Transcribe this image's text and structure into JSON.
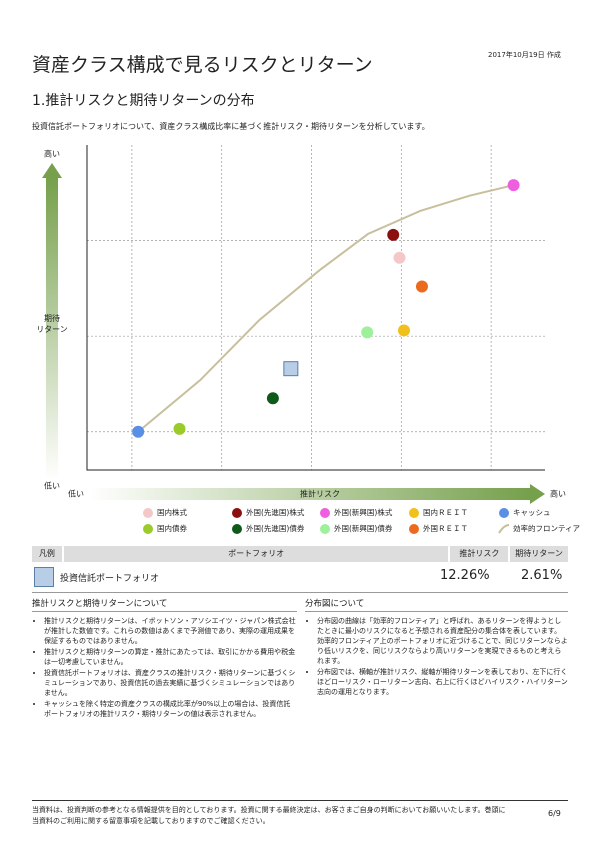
{
  "header": {
    "title": "資産クラス構成で見るリスクとリターン",
    "date": "2017年10月19日 作成",
    "section": "1.推計リスクと期待リターンの分布",
    "intro": "投資信託ポートフォリオについて、資産クラス構成比率に基づく推計リスク・期待リターンを分析しています。"
  },
  "chart_data": {
    "type": "scatter",
    "y_label": "期待\nリターン",
    "y_high": "高い",
    "y_low": "低い",
    "x_label": "推計リスク",
    "x_low": "低い",
    "x_high": "高い",
    "xlim": [
      -0.5,
      4.6
    ],
    "ylim": [
      -0.4,
      3
    ],
    "xticks": [
      0,
      1,
      2,
      3,
      4
    ],
    "yticks": [
      0,
      1,
      2
    ],
    "grid": true,
    "points": [
      {
        "name": "国内株式",
        "color": "#f4c7c9",
        "x": 2.98,
        "y": 1.82
      },
      {
        "name": "外国(先進国)株式",
        "color": "#8b0f0f",
        "x": 2.91,
        "y": 2.06
      },
      {
        "name": "外国(新興国)株式",
        "color": "#ee5fe0",
        "x": 4.25,
        "y": 2.58
      },
      {
        "name": "国内ＲＥＩＴ",
        "color": "#f2c01a",
        "x": 3.03,
        "y": 1.06
      },
      {
        "name": "キャッシュ",
        "color": "#5b8fe6",
        "x": 0.07,
        "y": 0
      },
      {
        "name": "国内債券",
        "color": "#9acb2a",
        "x": 0.53,
        "y": 0.03
      },
      {
        "name": "外国(先進国)債券",
        "color": "#0f5a1a",
        "x": 1.57,
        "y": 0.35
      },
      {
        "name": "外国(新興国)債券",
        "color": "#9ef09a",
        "x": 2.62,
        "y": 1.04
      },
      {
        "name": "外国ＲＥＩＴ",
        "color": "#ec6a1e",
        "x": 3.23,
        "y": 1.52
      }
    ],
    "frontier": {
      "name": "効率的フロンティア",
      "color": "#c8bf9c",
      "x": [
        0.07,
        0.76,
        1.42,
        2.09,
        2.63,
        3.21,
        3.76,
        4.25
      ],
      "y": [
        0,
        0.54,
        1.17,
        1.69,
        2.07,
        2.31,
        2.47,
        2.58
      ]
    },
    "portfolio": {
      "color": "#b8cde6",
      "x": 1.77,
      "y": 0.66
    }
  },
  "table": {
    "header": [
      "凡例",
      "ポートフォリオ",
      "推計リスク",
      "期待リターン"
    ],
    "rows": [
      [
        "投資信託ポートフォリオ",
        "12.26%",
        "2.61%"
      ]
    ]
  },
  "notes_left": {
    "title": "推計リスクと期待リターンについて",
    "items": [
      "推計リスクと期待リターンは、イボットソン・アソシエイツ・ジャパン株式会社が推計した数値です。これらの数値はあくまで予測値であり、実際の運用成果を保証するものではありません。",
      "推計リスクと期待リターンの算定・推計にあたっては、取引にかかる費用や税金は一切考慮していません。",
      "投資信託ポートフォリオは、資産クラスの推計リスク・期待リターンに基づくシミュレーションであり、投資信託の過去実績に基づくシミュレーションではありません。",
      "キャッシュを除く特定の資産クラスの構成比率が90%以上の場合は、投資信託ポートフォリオの推計リスク・期待リターンの値は表示されません。"
    ]
  },
  "notes_right": {
    "title": "分布図について",
    "items": [
      "分布図の曲線は「効率的フロンティア」と呼ばれ、あるリターンを得ようとしたときに最小のリスクになると予想される資産配分の集合体を表しています。効率的フロンティア上のポートフォリオに近づけることで、同じリターンならより低いリスクを、同じリスクならより高いリターンを実現できるものと考えられます。",
      "分布図では、横軸が推計リスク、縦軸が期待リターンを表しており、左下に行くほどローリスク・ローリターン志向、右上に行くほどハイリスク・ハイリターン志向の運用となります。"
    ]
  },
  "footer": {
    "text": "当資料は、投資判断の参考となる情報提供を目的としております。投資に関する最終決定は、お客さまご自身の判断においてお願いいたします。巻頭に当資料のご利用に関する留意事項を記載しておりますのでご確認ください。",
    "page": "6/9"
  }
}
